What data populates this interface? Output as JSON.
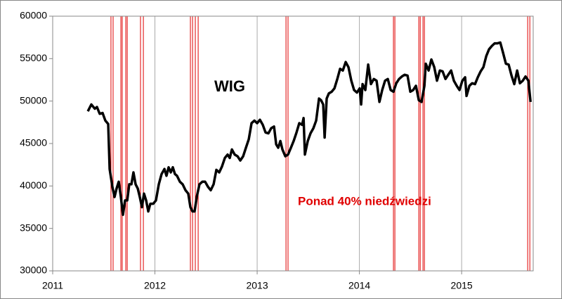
{
  "chart_data": {
    "type": "line",
    "annotations": [
      "WIG",
      "Ponad 40% niedźwiedzi"
    ],
    "xlim": [
      2011,
      2015.7
    ],
    "xticks": [
      2011,
      2012,
      2013,
      2014,
      2015
    ],
    "ylim": [
      30000,
      60000
    ],
    "yticks": [
      30000,
      35000,
      40000,
      45000,
      50000,
      55000,
      60000
    ],
    "grid": "x",
    "series": [
      {
        "color": "#000000",
        "width": 3.5,
        "x": [
          2011.344,
          2011.378,
          2011.412,
          2011.433,
          2011.46,
          2011.488,
          2011.515,
          2011.543,
          2011.557,
          2011.584,
          2011.605,
          2011.625,
          2011.646,
          2011.667,
          2011.687,
          2011.708,
          2011.729,
          2011.749,
          2011.77,
          2011.79,
          2011.811,
          2011.832,
          2011.852,
          2011.873,
          2011.893,
          2011.914,
          2011.935,
          2011.955,
          2011.983,
          2012.01,
          2012.038,
          2012.065,
          2012.093,
          2012.113,
          2012.134,
          2012.155,
          2012.175,
          2012.196,
          2012.216,
          2012.244,
          2012.271,
          2012.299,
          2012.326,
          2012.347,
          2012.368,
          2012.388,
          2012.409,
          2012.436,
          2012.464,
          2012.491,
          2012.519,
          2012.546,
          2012.574,
          2012.601,
          2012.629,
          2012.656,
          2012.684,
          2012.711,
          2012.732,
          2012.753,
          2012.78,
          2012.808,
          2012.835,
          2012.863,
          2012.89,
          2012.918,
          2012.945,
          2012.973,
          2013.0,
          2013.027,
          2013.055,
          2013.082,
          2013.11,
          2013.137,
          2013.165,
          2013.186,
          2013.206,
          2013.227,
          2013.247,
          2013.275,
          2013.302,
          2013.33,
          2013.357,
          2013.385,
          2013.412,
          2013.44,
          2013.454,
          2013.467,
          2013.495,
          2013.522,
          2013.55,
          2013.577,
          2013.605,
          2013.625,
          2013.646,
          2013.66,
          2013.68,
          2013.701,
          2013.729,
          2013.756,
          2013.784,
          2013.811,
          2013.838,
          2013.866,
          2013.893,
          2013.921,
          2013.948,
          2013.976,
          2014.003,
          2014.017,
          2014.031,
          2014.058,
          2014.086,
          2014.113,
          2014.141,
          2014.168,
          2014.196,
          2014.223,
          2014.251,
          2014.278,
          2014.306,
          2014.333,
          2014.361,
          2014.388,
          2014.416,
          2014.443,
          2014.471,
          2014.498,
          2014.526,
          2014.553,
          2014.581,
          2014.608,
          2014.636,
          2014.649,
          2014.677,
          2014.704,
          2014.732,
          2014.759,
          2014.787,
          2014.814,
          2014.842,
          2014.869,
          2014.897,
          2014.924,
          2014.952,
          2014.979,
          2015.007,
          2015.034,
          2015.048,
          2015.076,
          2015.103,
          2015.131,
          2015.158,
          2015.186,
          2015.213,
          2015.241,
          2015.268,
          2015.296,
          2015.323,
          2015.351,
          2015.378,
          2015.405,
          2015.433,
          2015.46,
          2015.488,
          2015.515,
          2015.543,
          2015.57,
          2015.598,
          2015.625,
          2015.653,
          2015.674
        ],
        "values": [
          48800,
          49600,
          49100,
          49300,
          48500,
          48600,
          47700,
          47300,
          42000,
          39900,
          38700,
          39700,
          40500,
          38700,
          36600,
          38300,
          38300,
          40200,
          40200,
          41600,
          40200,
          39700,
          38700,
          37500,
          39100,
          38300,
          37000,
          37900,
          37900,
          38300,
          40200,
          41400,
          42000,
          41200,
          42200,
          41600,
          42200,
          41400,
          41200,
          40500,
          40200,
          39500,
          39100,
          37500,
          37000,
          37000,
          38700,
          40200,
          40500,
          40500,
          39900,
          39500,
          40200,
          41900,
          41600,
          42300,
          43300,
          43700,
          43300,
          44300,
          43700,
          43500,
          43000,
          43500,
          44500,
          45500,
          47400,
          47700,
          47400,
          47800,
          47200,
          46300,
          46200,
          46800,
          47000,
          44900,
          44500,
          45300,
          44300,
          43500,
          43700,
          44500,
          45300,
          46300,
          47400,
          47200,
          48000,
          43700,
          45300,
          46200,
          46800,
          47700,
          50300,
          50100,
          49600,
          45700,
          50300,
          50900,
          51100,
          51500,
          52600,
          53800,
          53600,
          54600,
          54000,
          52400,
          51300,
          51000,
          51500,
          49600,
          52000,
          51300,
          54300,
          52000,
          52600,
          52400,
          49900,
          51300,
          52400,
          52600,
          51300,
          51100,
          52100,
          52600,
          52900,
          53100,
          53000,
          51100,
          51300,
          51800,
          50100,
          49900,
          51800,
          54400,
          53600,
          54900,
          54000,
          52400,
          53600,
          53500,
          52600,
          53100,
          53600,
          52400,
          51800,
          51300,
          52400,
          52800,
          50600,
          51800,
          52100,
          52000,
          52800,
          53500,
          54000,
          55300,
          56100,
          56500,
          56800,
          56800,
          56900,
          55700,
          54400,
          54300,
          53000,
          52000,
          53600,
          52100,
          52400,
          52900,
          52400,
          49900
        ]
      },
      {
        "color": "#e00000",
        "width": 1,
        "x": [
          2011.344,
          2011.57,
          2011.57,
          2011.591,
          2011.591,
          2011.667,
          2011.667,
          2011.68,
          2011.68,
          2011.715,
          2011.715,
          2011.729,
          2011.729,
          2011.859,
          2011.859,
          2011.887,
          2011.887,
          2012.347,
          2012.347,
          2012.368,
          2012.368,
          2012.395,
          2012.395,
          2012.423,
          2012.423,
          2013.282,
          2013.282,
          2013.302,
          2013.302,
          2014.333,
          2014.333,
          2014.347,
          2014.347,
          2014.581,
          2014.581,
          2014.595,
          2014.595,
          2014.622,
          2014.622,
          2014.636,
          2014.636,
          2015.646,
          2015.646,
          2015.667,
          2015.667,
          2015.687
        ],
        "values": [
          30000,
          30000,
          60000,
          60000,
          30000,
          30000,
          60000,
          60000,
          30000,
          30000,
          60000,
          60000,
          30000,
          30000,
          60000,
          60000,
          30000,
          30000,
          60000,
          60000,
          30000,
          30000,
          60000,
          60000,
          30000,
          30000,
          60000,
          60000,
          30000,
          30000,
          60000,
          60000,
          30000,
          30000,
          60000,
          60000,
          30000,
          30000,
          60000,
          60000,
          30000,
          30000,
          60000,
          60000,
          30000,
          30000
        ]
      }
    ]
  }
}
